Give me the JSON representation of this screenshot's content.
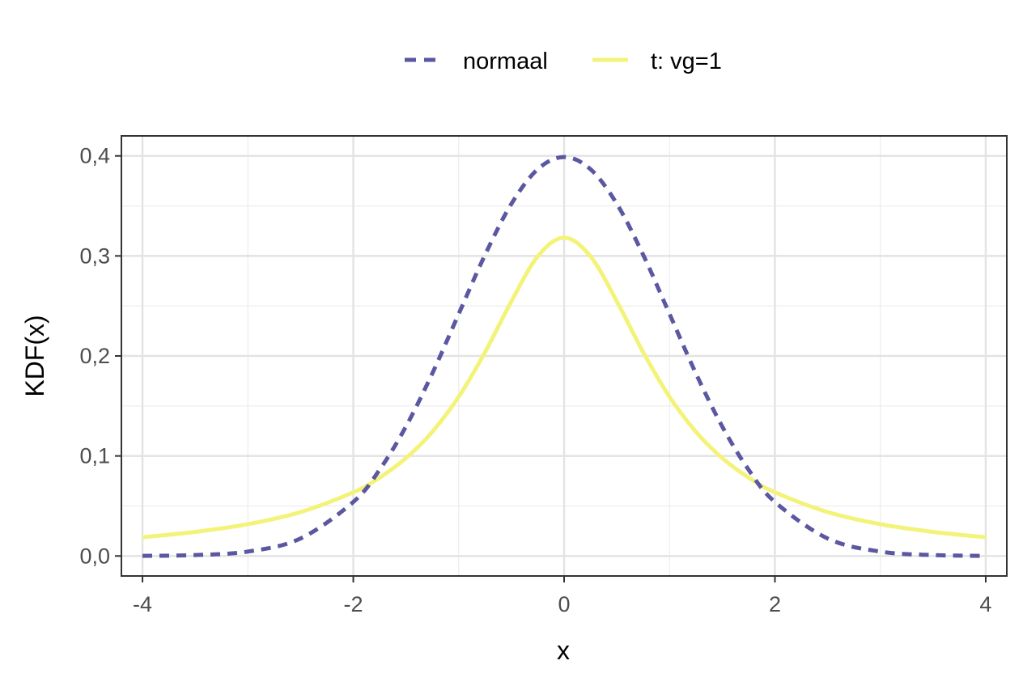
{
  "chart_data": {
    "type": "line",
    "xlabel": "x",
    "ylabel": "KDF(x)",
    "xlim": [
      -4.2,
      4.2
    ],
    "ylim": [
      -0.02,
      0.42
    ],
    "x_ticks": [
      -4,
      -2,
      0,
      2,
      4
    ],
    "x_tick_labels": [
      "-4",
      "-2",
      "0",
      "2",
      "4"
    ],
    "x_minor_ticks": [
      -3,
      -1,
      1,
      3
    ],
    "y_ticks": [
      0.0,
      0.1,
      0.2,
      0.3,
      0.4
    ],
    "y_tick_labels": [
      "0,0",
      "0,1",
      "0,2",
      "0,3",
      "0,4"
    ],
    "y_minor_ticks": [
      0.05,
      0.15,
      0.25,
      0.35
    ],
    "grid": true,
    "legend_position": "top",
    "series": [
      {
        "name": "normaal",
        "color": "#5B57A0",
        "line_style": "dashed",
        "x": [
          -4,
          -3.5,
          -3,
          -2.5,
          -2,
          -1.75,
          -1.5,
          -1.25,
          -1,
          -0.75,
          -0.5,
          -0.25,
          0,
          0.25,
          0.5,
          0.75,
          1,
          1.25,
          1.5,
          1.75,
          2,
          2.5,
          3,
          3.5,
          4
        ],
        "y": [
          0.0001,
          0.0009,
          0.0044,
          0.0175,
          0.054,
          0.0863,
          0.1295,
          0.1826,
          0.242,
          0.3011,
          0.3521,
          0.3867,
          0.3989,
          0.3867,
          0.3521,
          0.3011,
          0.242,
          0.1826,
          0.1295,
          0.0863,
          0.054,
          0.0175,
          0.0044,
          0.0009,
          0.0001
        ]
      },
      {
        "name": "t: vg=1",
        "color": "#F3F37A",
        "line_style": "solid",
        "x": [
          -4,
          -3.5,
          -3,
          -2.5,
          -2,
          -1.75,
          -1.5,
          -1.25,
          -1,
          -0.75,
          -0.5,
          -0.25,
          0,
          0.25,
          0.5,
          0.75,
          1,
          1.25,
          1.5,
          1.75,
          2,
          2.5,
          3,
          3.5,
          4
        ],
        "y": [
          0.0187,
          0.0241,
          0.0318,
          0.0439,
          0.0637,
          0.0784,
          0.0979,
          0.1242,
          0.1592,
          0.2037,
          0.2546,
          0.2996,
          0.3183,
          0.2996,
          0.2546,
          0.2037,
          0.1592,
          0.1242,
          0.0979,
          0.0784,
          0.0637,
          0.0439,
          0.0318,
          0.0241,
          0.0187
        ]
      }
    ]
  }
}
